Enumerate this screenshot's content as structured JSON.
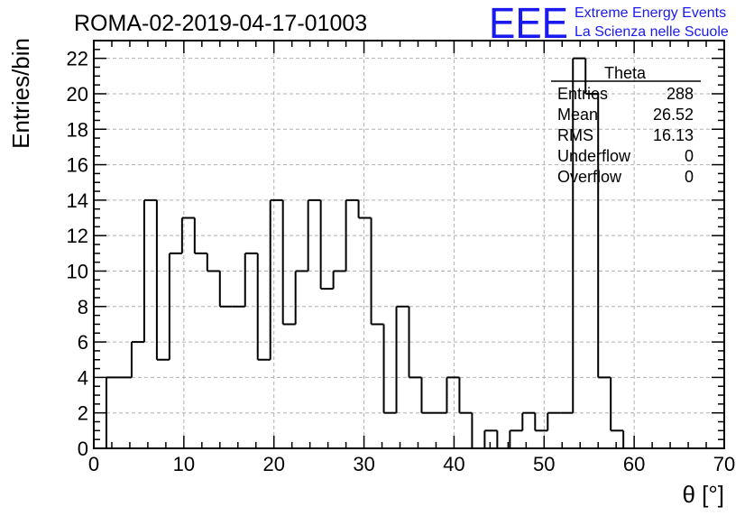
{
  "header": {
    "run_title": "ROMA-02-2019-04-17-01003",
    "logo_mark": "EEE",
    "logo_line1": "Extreme Energy Events",
    "logo_line2": "La Scienza nelle Scuole"
  },
  "stats_box": {
    "name": "Theta",
    "rows": [
      {
        "label": "Entries",
        "value": "288"
      },
      {
        "label": "Mean",
        "value": "26.52"
      },
      {
        "label": "RMS",
        "value": "16.13"
      },
      {
        "label": "Underflow",
        "value": "0"
      },
      {
        "label": "Overflow",
        "value": "0"
      }
    ]
  },
  "colors": {
    "line": "#000000",
    "grid": "#b0b0b0",
    "logo": "#1a1aee"
  },
  "chart_data": {
    "type": "histogram",
    "xlabel": "θ [°]",
    "ylabel": "Entries/bin",
    "xlim": [
      0,
      70
    ],
    "ylim": [
      0,
      23
    ],
    "grid": true,
    "x_ticks": [
      0,
      10,
      20,
      30,
      40,
      50,
      60,
      70
    ],
    "y_ticks": [
      0,
      2,
      4,
      6,
      8,
      10,
      12,
      14,
      16,
      18,
      20,
      22
    ],
    "bin_width": 1.4,
    "bin_edges_start": 1.4,
    "values": [
      4,
      4,
      6,
      14,
      5,
      11,
      13,
      11,
      10,
      8,
      8,
      11,
      5,
      14,
      7,
      10,
      14,
      9,
      10,
      14,
      13,
      7,
      2,
      8,
      4,
      2,
      2,
      4,
      2,
      0,
      1,
      0,
      1,
      2,
      1,
      2,
      2,
      22,
      20,
      4,
      1,
      0,
      0,
      0,
      0,
      0,
      0,
      0
    ]
  }
}
